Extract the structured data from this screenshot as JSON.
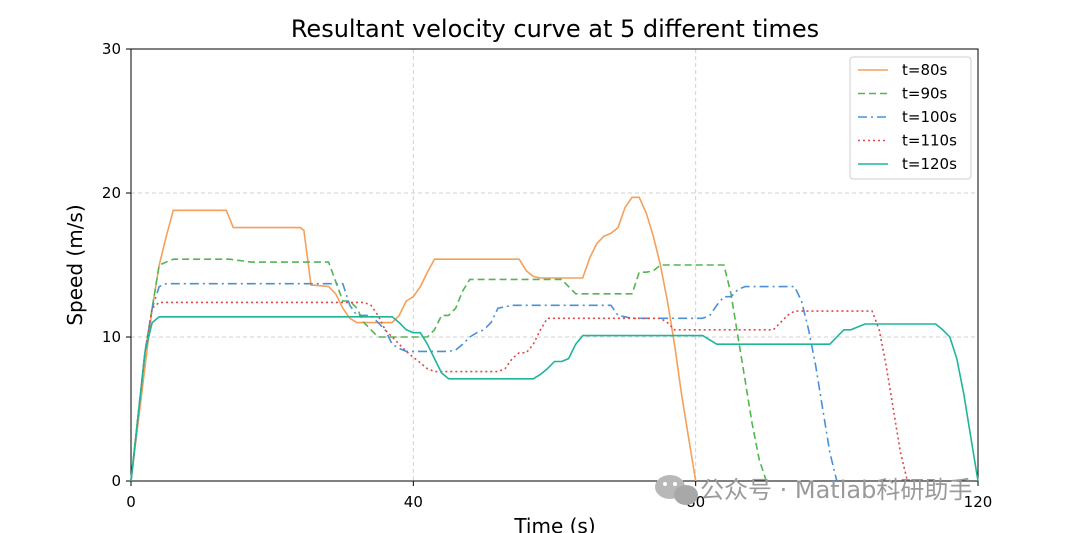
{
  "chart_data": {
    "type": "line",
    "title": "Resultant velocity curve at 5 different times",
    "xlabel": "Time (s)",
    "ylabel": "Speed (m/s)",
    "xlim": [
      0,
      120
    ],
    "ylim": [
      0,
      30
    ],
    "xticks": [
      0,
      40,
      80,
      120
    ],
    "yticks": [
      0,
      10,
      20,
      30
    ],
    "grid": "dashed",
    "legend_position": "top-right",
    "series": [
      {
        "name": "t=80s",
        "color": "#f5a05a",
        "style": "solid",
        "x": [
          0,
          2,
          3,
          4,
          5,
          6,
          8,
          13.5,
          14.5,
          16,
          24,
          24.5,
          25.5,
          26,
          28,
          29,
          30,
          31,
          32,
          34,
          36,
          37,
          38,
          39,
          40,
          41,
          42,
          43,
          55,
          56,
          57,
          58,
          59,
          60,
          61,
          62,
          64,
          65,
          66,
          67,
          68,
          69,
          70,
          71,
          72,
          73,
          74,
          75,
          76,
          77,
          78,
          79,
          80
        ],
        "y": [
          0,
          8,
          12,
          15,
          17,
          18.8,
          18.8,
          18.8,
          17.6,
          17.6,
          17.6,
          17.4,
          13.6,
          13.6,
          13.5,
          13,
          12,
          11.3,
          11,
          11,
          11,
          11,
          11.5,
          12.5,
          12.8,
          13.5,
          14.5,
          15.4,
          15.4,
          14.6,
          14.2,
          14.1,
          14.1,
          14.1,
          14.1,
          14.1,
          14.1,
          15.5,
          16.5,
          17,
          17.2,
          17.6,
          19,
          19.7,
          19.7,
          18.6,
          17,
          15,
          12.5,
          9.5,
          6,
          3,
          0
        ]
      },
      {
        "name": "t=90s",
        "color": "#53b553",
        "style": "dashed",
        "x": [
          0,
          2,
          4,
          6,
          14,
          17,
          24,
          28,
          30,
          31,
          32,
          33,
          34,
          35,
          36,
          40,
          42,
          43,
          44,
          45,
          46,
          47,
          48,
          50,
          51,
          52,
          54,
          57,
          61,
          62,
          63,
          71,
          72,
          73,
          74,
          75,
          77,
          78,
          84,
          85,
          86,
          87,
          88,
          89,
          90
        ],
        "y": [
          0,
          9,
          15,
          15.4,
          15.4,
          15.2,
          15.2,
          15.2,
          12.5,
          12.5,
          12,
          11,
          10.5,
          10,
          10,
          10,
          10,
          10.5,
          11.5,
          11.5,
          12,
          13.2,
          14,
          14,
          14,
          14,
          14,
          14,
          14,
          13.5,
          13,
          13,
          14.5,
          14.5,
          14.6,
          15,
          15,
          15,
          15,
          13,
          10,
          7,
          4,
          1.5,
          0
        ]
      },
      {
        "name": "t=100s",
        "color": "#4a90d9",
        "style": "dashdot",
        "x": [
          0,
          2,
          3,
          4,
          5,
          30,
          31,
          32,
          33,
          34,
          35,
          36,
          37,
          38,
          39,
          40,
          45,
          46,
          47,
          48,
          49,
          50,
          51,
          52,
          54,
          55,
          60,
          68,
          69,
          71,
          78,
          81,
          82,
          83,
          84,
          85,
          86,
          87,
          88,
          89,
          90,
          91,
          93,
          94,
          95,
          96,
          97,
          98,
          99,
          100
        ],
        "y": [
          0,
          9,
          12,
          13.5,
          13.7,
          13.7,
          12.2,
          11.5,
          11.5,
          11.5,
          11,
          10.5,
          9.5,
          9.2,
          9,
          9,
          9,
          9.1,
          9.5,
          10,
          10.3,
          10.5,
          11,
          12,
          12.2,
          12.2,
          12.2,
          12.2,
          11.5,
          11.3,
          11.3,
          11.3,
          11.5,
          12.2,
          12.8,
          12.8,
          13.3,
          13.5,
          13.5,
          13.5,
          13.5,
          13.5,
          13.5,
          13.5,
          12.5,
          10.5,
          8,
          5,
          2,
          0
        ]
      },
      {
        "name": "t=110s",
        "color": "#e04848",
        "style": "dotted",
        "x": [
          0,
          2,
          3,
          4,
          5,
          31,
          33,
          34,
          35,
          36,
          37,
          38,
          39,
          40,
          41,
          42,
          43,
          44,
          45,
          52,
          53,
          54,
          55,
          56,
          57,
          58,
          59,
          60,
          72,
          75,
          76,
          77,
          89,
          90,
          91,
          92,
          93,
          94,
          100,
          105,
          106,
          107,
          108,
          109,
          110
        ],
        "y": [
          0,
          9,
          12,
          12.4,
          12.4,
          12.4,
          12.4,
          12.2,
          11.5,
          10.5,
          10,
          9.5,
          9,
          8.6,
          8.2,
          7.8,
          7.6,
          7.6,
          7.6,
          7.6,
          7.8,
          8.5,
          8.9,
          8.9,
          9.5,
          10.5,
          11.3,
          11.3,
          11.3,
          11.3,
          11,
          10.5,
          10.5,
          10.5,
          10.5,
          11,
          11.5,
          11.8,
          11.8,
          11.8,
          10.5,
          8,
          5,
          2,
          0
        ]
      },
      {
        "name": "t=120s",
        "color": "#1fb59a",
        "style": "solid",
        "x": [
          0,
          2,
          3,
          4,
          37,
          38,
          39,
          40,
          41,
          42,
          43,
          44,
          45,
          57,
          58,
          59,
          60,
          61,
          62,
          63,
          64,
          81,
          82,
          83,
          98,
          99,
          100,
          101,
          102,
          103,
          104,
          105,
          106,
          110,
          114,
          115,
          116,
          117,
          118,
          119,
          120
        ],
        "y": [
          0,
          9,
          11,
          11.4,
          11.4,
          11,
          10.5,
          10.3,
          10.3,
          9.5,
          8.5,
          7.5,
          7.1,
          7.1,
          7.4,
          7.8,
          8.3,
          8.3,
          8.5,
          9.5,
          10.1,
          10.1,
          9.8,
          9.5,
          9.5,
          9.5,
          10,
          10.5,
          10.5,
          10.7,
          10.9,
          10.9,
          10.9,
          10.9,
          10.9,
          10.5,
          10,
          8.5,
          6,
          3,
          0
        ]
      }
    ]
  },
  "watermark": "公众号 · Matlab科研助手"
}
